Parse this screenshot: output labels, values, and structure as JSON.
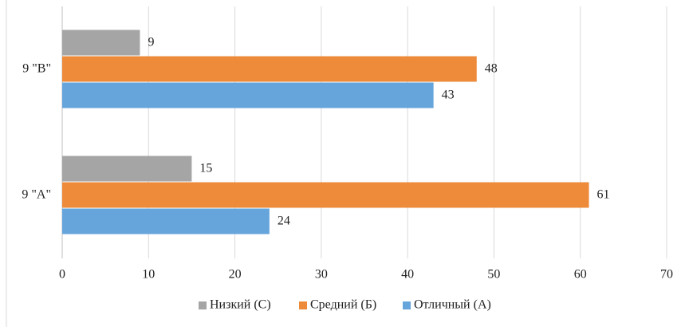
{
  "chart_data": {
    "type": "bar",
    "orientation": "horizontal",
    "categories": [
      "9 \"А\"",
      "9 \"В\""
    ],
    "series": [
      {
        "name": "Низкий (С)",
        "color": "#a5a5a5",
        "values": [
          15,
          9
        ]
      },
      {
        "name": "Средний (Б)",
        "color": "#ed8b3b",
        "values": [
          61,
          48
        ]
      },
      {
        "name": "Отличный (А)",
        "color": "#66a5dc",
        "values": [
          24,
          43
        ]
      }
    ],
    "xlim": [
      0,
      70
    ],
    "xticks": [
      0,
      10,
      20,
      30,
      40,
      50,
      60,
      70
    ],
    "grid": true,
    "legend": "bottom"
  }
}
